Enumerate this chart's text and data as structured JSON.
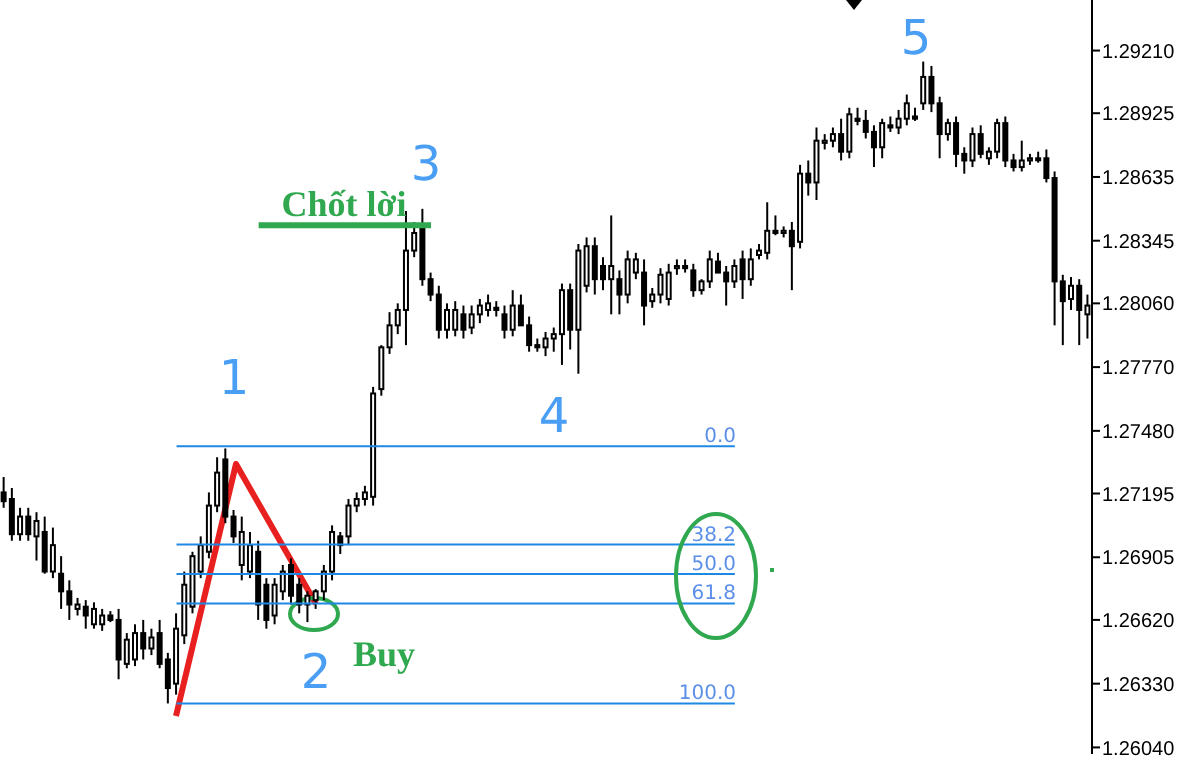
{
  "chart_data": {
    "type": "candlestick",
    "color": "#000000",
    "tick_labels": "y",
    "categories": [
      null,
      null,
      null,
      null,
      null,
      null,
      null,
      null,
      null,
      null,
      null,
      null,
      null,
      null,
      null,
      null,
      null,
      null,
      null,
      null,
      null,
      null,
      null,
      null,
      null,
      null,
      null,
      null,
      null,
      null,
      null,
      null,
      null,
      null,
      null,
      null,
      null,
      null,
      null,
      null,
      null,
      null,
      null,
      null,
      null,
      null,
      null,
      null,
      null,
      null,
      null,
      null,
      null,
      null,
      null,
      null,
      null,
      null,
      null,
      null,
      null,
      null,
      null,
      null,
      null,
      null,
      null,
      null,
      null,
      null,
      null,
      null,
      null,
      null,
      null,
      null,
      null,
      null,
      null,
      null,
      null,
      null,
      null,
      null,
      null,
      null,
      null,
      null,
      null,
      null,
      null,
      null,
      null,
      null,
      null,
      null,
      null,
      null,
      null,
      null,
      null,
      null,
      null,
      null,
      null,
      null,
      null,
      null,
      null,
      null,
      null,
      null,
      null,
      null,
      null,
      null,
      null,
      null,
      null,
      null,
      null,
      null,
      null,
      null,
      null,
      null,
      null,
      null,
      null,
      null,
      null,
      null,
      null
    ],
    "ohlc": [
      [
        1.272,
        1.2727,
        1.2713,
        1.2716
      ],
      [
        1.2717,
        1.2722,
        1.2698,
        1.2701
      ],
      [
        1.2701,
        1.2713,
        1.2698,
        1.2709
      ],
      [
        1.2709,
        1.2713,
        1.2698,
        1.2701
      ],
      [
        1.27,
        1.2711,
        1.2689,
        1.2707
      ],
      [
        1.2702,
        1.2709,
        1.2683,
        1.2684
      ],
      [
        1.2684,
        1.2704,
        1.2681,
        1.2696
      ],
      [
        1.2683,
        1.2691,
        1.2667,
        1.2675
      ],
      [
        1.2675,
        1.268,
        1.2662,
        1.2669
      ],
      [
        1.2667,
        1.2672,
        1.2664,
        1.2669
      ],
      [
        1.2668,
        1.2671,
        1.2658,
        1.2664
      ],
      [
        1.266,
        1.267,
        1.2658,
        1.2667
      ],
      [
        1.266,
        1.2667,
        1.2657,
        1.2664
      ],
      [
        1.2664,
        1.2666,
        1.2661,
        1.2662
      ],
      [
        1.2662,
        1.2667,
        1.2635,
        1.2644
      ],
      [
        1.2642,
        1.2656,
        1.264,
        1.2653
      ],
      [
        1.2644,
        1.266,
        1.2641,
        1.2656
      ],
      [
        1.2656,
        1.2662,
        1.2644,
        1.2649
      ],
      [
        1.2649,
        1.2658,
        1.2646,
        1.2654
      ],
      [
        1.2656,
        1.2662,
        1.264,
        1.2642
      ],
      [
        1.2644,
        1.2647,
        1.2624,
        1.2631
      ],
      [
        1.2633,
        1.2665,
        1.2628,
        1.2658
      ],
      [
        1.2655,
        1.2684,
        1.2651,
        1.2678
      ],
      [
        1.2668,
        1.2693,
        1.2665,
        1.2691
      ],
      [
        1.2684,
        1.27,
        1.2681,
        1.2696
      ],
      [
        1.2693,
        1.272,
        1.269,
        1.2714
      ],
      [
        1.2714,
        1.2736,
        1.2711,
        1.2729
      ],
      [
        1.2735,
        1.274,
        1.2706,
        1.2709
      ],
      [
        1.2709,
        1.2712,
        1.2697,
        1.27
      ],
      [
        1.2687,
        1.2709,
        1.268,
        1.2702
      ],
      [
        1.2684,
        1.2702,
        1.2681,
        1.2696
      ],
      [
        1.2693,
        1.2698,
        1.2662,
        1.2669
      ],
      [
        1.2678,
        1.2681,
        1.2658,
        1.2662
      ],
      [
        1.2664,
        1.2681,
        1.266,
        1.2678
      ],
      [
        1.2675,
        1.2687,
        1.2671,
        1.2684
      ],
      [
        1.2687,
        1.269,
        1.2669,
        1.2673
      ],
      [
        1.2678,
        1.2681,
        1.2665,
        1.2669
      ],
      [
        1.2669,
        1.2675,
        1.2661,
        1.2673
      ],
      [
        1.2671,
        1.2676,
        1.2667,
        1.2675
      ],
      [
        1.2675,
        1.2687,
        1.2671,
        1.2684
      ],
      [
        1.2684,
        1.2705,
        1.268,
        1.2702
      ],
      [
        1.27,
        1.2702,
        1.2692,
        1.2696
      ],
      [
        1.27,
        1.2717,
        1.2696,
        1.2714
      ],
      [
        1.2714,
        1.272,
        1.2711,
        1.2717
      ],
      [
        1.2717,
        1.2723,
        1.2714,
        1.272
      ],
      [
        1.2718,
        1.2768,
        1.2714,
        1.2765
      ],
      [
        1.2767,
        1.2787,
        1.2764,
        1.2786
      ],
      [
        1.2786,
        1.2802,
        1.2783,
        1.2796
      ],
      [
        1.2796,
        1.2806,
        1.2792,
        1.2803
      ],
      [
        1.2803,
        1.2848,
        1.2787,
        1.283
      ],
      [
        1.283,
        1.2843,
        1.2827,
        1.2838
      ],
      [
        1.2841,
        1.2849,
        1.2814,
        1.2817
      ],
      [
        1.2817,
        1.282,
        1.2807,
        1.281
      ],
      [
        1.281,
        1.2814,
        1.279,
        1.2794
      ],
      [
        1.2794,
        1.2806,
        1.279,
        1.2803
      ],
      [
        1.2794,
        1.2807,
        1.2791,
        1.2803
      ],
      [
        1.2801,
        1.2805,
        1.279,
        1.2794
      ],
      [
        1.2795,
        1.2805,
        1.2792,
        1.2801
      ],
      [
        1.2801,
        1.2808,
        1.2797,
        1.2805
      ],
      [
        1.2803,
        1.281,
        1.28,
        1.2806
      ],
      [
        1.2804,
        1.2807,
        1.28,
        1.2803
      ],
      [
        1.2801,
        1.2805,
        1.279,
        1.2794
      ],
      [
        1.2794,
        1.2812,
        1.2791,
        1.2805
      ],
      [
        1.2805,
        1.281,
        1.2796,
        1.2796
      ],
      [
        1.2796,
        1.28,
        1.2784,
        1.2787
      ],
      [
        1.2787,
        1.279,
        1.2784,
        1.2786
      ],
      [
        1.2786,
        1.2793,
        1.2782,
        1.279
      ],
      [
        1.279,
        1.2795,
        1.2784,
        1.2792
      ],
      [
        1.2792,
        1.2815,
        1.2778,
        1.2812
      ],
      [
        1.2812,
        1.2815,
        1.2785,
        1.2794
      ],
      [
        1.2794,
        1.2833,
        1.2774,
        1.283
      ],
      [
        1.2814,
        1.2836,
        1.2811,
        1.2832
      ],
      [
        1.2832,
        1.2836,
        1.281,
        1.2817
      ],
      [
        1.2823,
        1.2827,
        1.2812,
        1.2817
      ],
      [
        1.2817,
        1.2846,
        1.2801,
        1.2823
      ],
      [
        1.2817,
        1.2821,
        1.2801,
        1.281
      ],
      [
        1.281,
        1.283,
        1.2806,
        1.2826
      ],
      [
        1.282,
        1.2829,
        1.2817,
        1.2826
      ],
      [
        1.282,
        1.2826,
        1.2796,
        1.2805
      ],
      [
        1.2807,
        1.2813,
        1.2804,
        1.281
      ],
      [
        1.281,
        1.2822,
        1.2806,
        1.2819
      ],
      [
        1.2808,
        1.2824,
        1.2805,
        1.282
      ],
      [
        1.2822,
        1.2826,
        1.2819,
        1.2823
      ],
      [
        1.2823,
        1.2826,
        1.282,
        1.2822
      ],
      [
        1.2821,
        1.2824,
        1.2809,
        1.2812
      ],
      [
        1.2812,
        1.2817,
        1.281,
        1.2816
      ],
      [
        1.2816,
        1.283,
        1.2813,
        1.2826
      ],
      [
        1.2825,
        1.2829,
        1.282,
        1.282
      ],
      [
        1.282,
        1.2823,
        1.2805,
        1.2816
      ],
      [
        1.2816,
        1.2826,
        1.2813,
        1.2823
      ],
      [
        1.2826,
        1.283,
        1.2808,
        1.2817
      ],
      [
        1.2817,
        1.2831,
        1.2814,
        1.2826
      ],
      [
        1.2828,
        1.2833,
        1.2826,
        1.283
      ],
      [
        1.2829,
        1.2852,
        1.2826,
        1.2839
      ],
      [
        1.2839,
        1.2846,
        1.2837,
        1.2838
      ],
      [
        1.2838,
        1.2841,
        1.2836,
        1.2839
      ],
      [
        1.2839,
        1.2843,
        1.2812,
        1.2832
      ],
      [
        1.2834,
        1.2869,
        1.2831,
        1.2865
      ],
      [
        1.2865,
        1.2871,
        1.2855,
        1.2861
      ],
      [
        1.2861,
        1.2886,
        1.2853,
        1.288
      ],
      [
        1.2879,
        1.2883,
        1.2876,
        1.288
      ],
      [
        1.288,
        1.2886,
        1.2877,
        1.2883
      ],
      [
        1.2883,
        1.289,
        1.2871,
        1.2875
      ],
      [
        1.2875,
        1.2895,
        1.2872,
        1.2892
      ],
      [
        1.289,
        1.2895,
        1.2887,
        1.2889
      ],
      [
        1.2889,
        1.2894,
        1.2881,
        1.2884
      ],
      [
        1.2884,
        1.2887,
        1.2868,
        1.2877
      ],
      [
        1.2877,
        1.289,
        1.2872,
        1.2888
      ],
      [
        1.2887,
        1.2891,
        1.2884,
        1.2886
      ],
      [
        1.2886,
        1.2894,
        1.2883,
        1.289
      ],
      [
        1.289,
        1.2901,
        1.2887,
        1.2897
      ],
      [
        1.2891,
        1.2895,
        1.2889,
        1.289
      ],
      [
        1.2897,
        1.2916,
        1.2894,
        1.2909
      ],
      [
        1.2909,
        1.2914,
        1.2893,
        1.2897
      ],
      [
        1.2897,
        1.29,
        1.2872,
        1.2883
      ],
      [
        1.2883,
        1.289,
        1.288,
        1.2888
      ],
      [
        1.2888,
        1.2891,
        1.2868,
        1.2874
      ],
      [
        1.2874,
        1.2877,
        1.2865,
        1.2871
      ],
      [
        1.2871,
        1.2886,
        1.2868,
        1.2883
      ],
      [
        1.2883,
        1.2887,
        1.2872,
        1.2874
      ],
      [
        1.2872,
        1.2877,
        1.2869,
        1.2875
      ],
      [
        1.2875,
        1.289,
        1.2872,
        1.2888
      ],
      [
        1.2888,
        1.2891,
        1.2868,
        1.2871
      ],
      [
        1.2871,
        1.2874,
        1.2866,
        1.2868
      ],
      [
        1.2868,
        1.288,
        1.2866,
        1.2871
      ],
      [
        1.2871,
        1.2874,
        1.2869,
        1.2872
      ],
      [
        1.2872,
        1.2875,
        1.287,
        1.2872
      ],
      [
        1.2872,
        1.2876,
        1.2861,
        1.2863
      ],
      [
        1.2863,
        1.2866,
        1.2796,
        1.2816
      ],
      [
        1.2816,
        1.2819,
        1.2787,
        1.2807
      ],
      [
        1.2808,
        1.2818,
        1.2803,
        1.2814
      ],
      [
        1.2814,
        1.2817,
        1.2787,
        1.2803
      ],
      [
        1.2801,
        1.281,
        1.279,
        1.2805
      ]
    ],
    "ylim": [
      1.2601,
      1.2944
    ],
    "yticks": [
      {
        "value": 1.2604,
        "label": "1.26040"
      },
      {
        "value": 1.2633,
        "label": "1.26330"
      },
      {
        "value": 1.2662,
        "label": "1.26620"
      },
      {
        "value": 1.26905,
        "label": "1.26905"
      },
      {
        "value": 1.27195,
        "label": "1.27195"
      },
      {
        "value": 1.2748,
        "label": "1.27480"
      },
      {
        "value": 1.2777,
        "label": "1.27770"
      },
      {
        "value": 1.2806,
        "label": "1.28060"
      },
      {
        "value": 1.28345,
        "label": "1.28345"
      },
      {
        "value": 1.28635,
        "label": "1.28635"
      },
      {
        "value": 1.28925,
        "label": "1.28925"
      },
      {
        "value": 1.2921,
        "label": "1.29210"
      }
    ],
    "ref_lines": [
      {
        "axis": "y",
        "value": 1.2741,
        "color": "#1e88e5"
      },
      {
        "axis": "y",
        "value": 1.26963,
        "color": "#1e88e5"
      },
      {
        "axis": "y",
        "value": 1.26829,
        "color": "#1e88e5"
      },
      {
        "axis": "y",
        "value": 1.26695,
        "color": "#1e88e5"
      },
      {
        "axis": "y",
        "value": 1.2624,
        "color": "#1e88e5"
      },
      {
        "axis": "y",
        "value": 1.28415,
        "color": "#2fa84f"
      }
    ],
    "annotations": [
      "1",
      "2",
      "3",
      "4",
      "5",
      "Chốt lời",
      "Buy",
      {
        "text": "0.0",
        "y": 1.2741
      },
      {
        "text": "38.2",
        "y": 1.26963
      },
      {
        "text": "50.0",
        "y": 1.26829
      },
      {
        "text": "61.8",
        "y": 1.26695
      },
      {
        "text": "100.0",
        "y": 1.2624
      }
    ]
  }
}
